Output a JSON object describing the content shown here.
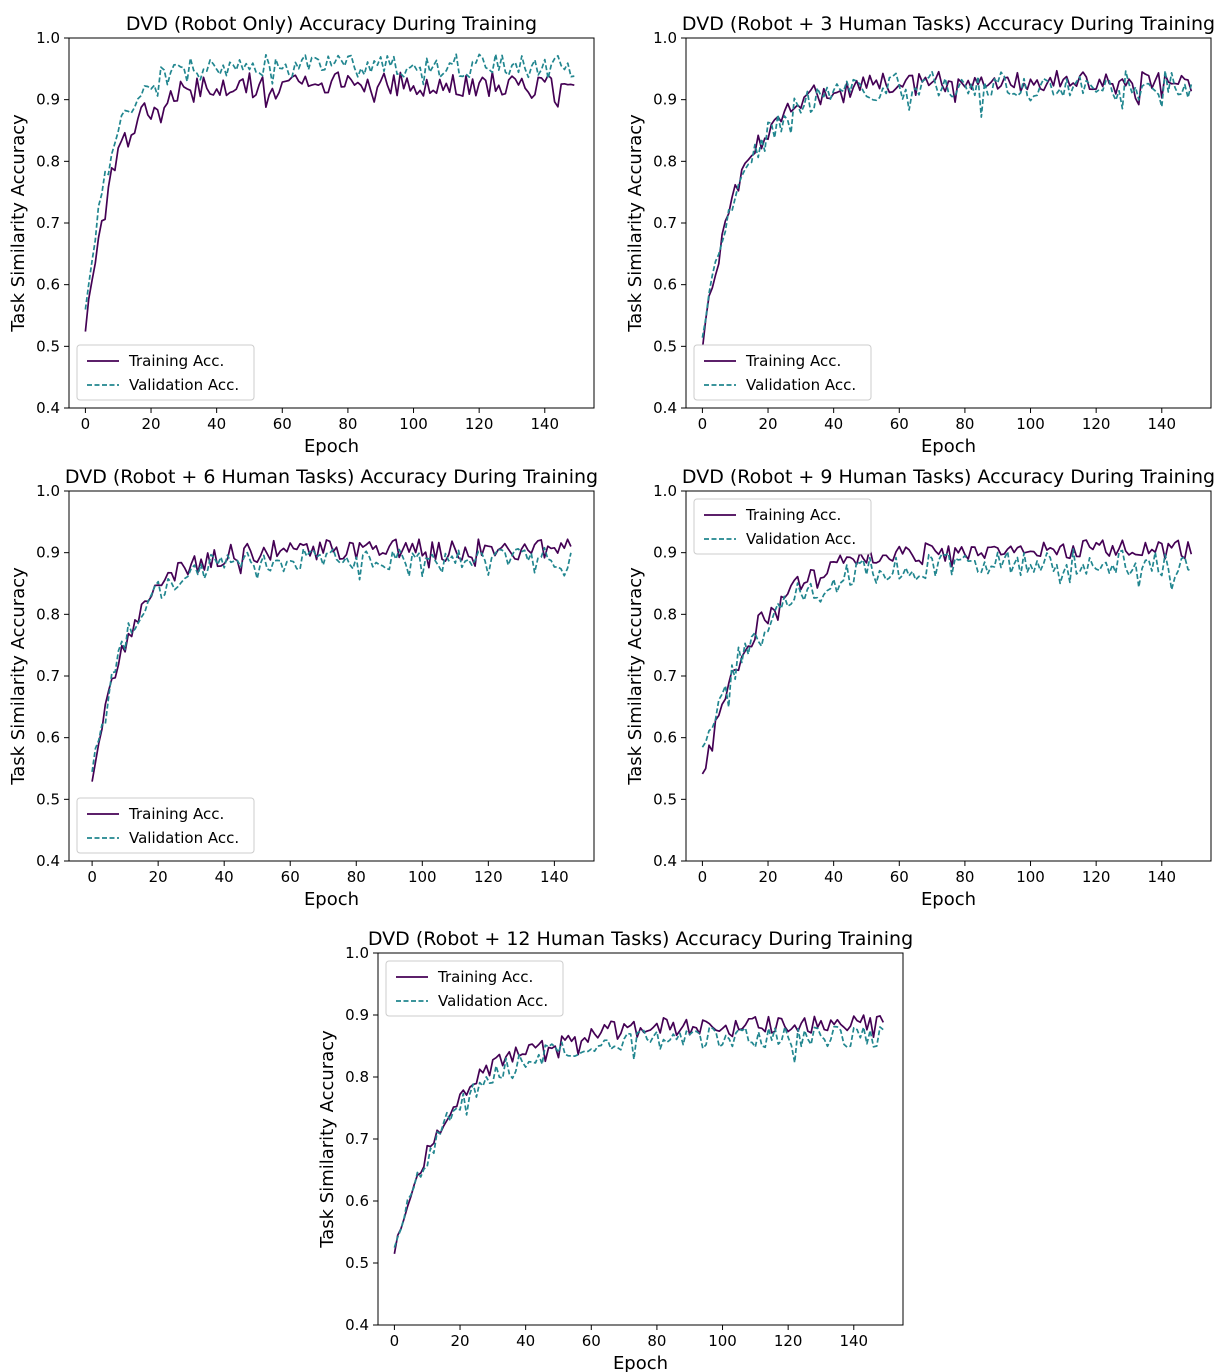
{
  "colors": {
    "training": "#440154",
    "validation": "#21868f"
  },
  "chart_data": [
    {
      "type": "line",
      "title": "DVD (Robot Only) Accuracy During Training",
      "xlabel": "Epoch",
      "ylabel": "Task Similarity Accuracy",
      "xlim": [
        -5,
        155
      ],
      "ylim": [
        0.4,
        1.0
      ],
      "xticks": [
        "0",
        "20",
        "40",
        "60",
        "80",
        "100",
        "120",
        "140"
      ],
      "yticks": [
        "0.4",
        "0.5",
        "0.6",
        "0.7",
        "0.8",
        "0.9",
        "1.0"
      ],
      "legend": "lower-left",
      "epochs": 150,
      "series": [
        {
          "name": "Training Acc.",
          "style": "solid",
          "start": 0.52,
          "plateau": 0.925,
          "rate": 0.12,
          "noise": 0.02
        },
        {
          "name": "Validation Acc.",
          "style": "dashed",
          "start": 0.555,
          "plateau": 0.955,
          "rate": 0.13,
          "noise": 0.02
        }
      ]
    },
    {
      "type": "line",
      "title": "DVD (Robot + 3 Human Tasks) Accuracy During Training",
      "xlabel": "Epoch",
      "ylabel": "Task Similarity Accuracy",
      "xlim": [
        -5,
        155
      ],
      "ylim": [
        0.4,
        1.0
      ],
      "xticks": [
        "0",
        "20",
        "40",
        "60",
        "80",
        "100",
        "120",
        "140"
      ],
      "yticks": [
        "0.4",
        "0.5",
        "0.6",
        "0.7",
        "0.8",
        "0.9",
        "1.0"
      ],
      "legend": "lower-left",
      "epochs": 150,
      "series": [
        {
          "name": "Training Acc.",
          "style": "solid",
          "start": 0.505,
          "plateau": 0.93,
          "rate": 0.085,
          "noise": 0.018
        },
        {
          "name": "Validation Acc.",
          "style": "dashed",
          "start": 0.525,
          "plateau": 0.925,
          "rate": 0.08,
          "noise": 0.022
        }
      ]
    },
    {
      "type": "line",
      "title": "DVD (Robot + 6 Human Tasks) Accuracy During Training",
      "xlabel": "Epoch",
      "ylabel": "Task Similarity Accuracy",
      "xlim": [
        -7,
        152
      ],
      "ylim": [
        0.4,
        1.0
      ],
      "xticks": [
        "0",
        "20",
        "40",
        "60",
        "80",
        "100",
        "120",
        "140"
      ],
      "yticks": [
        "0.4",
        "0.5",
        "0.6",
        "0.7",
        "0.8",
        "0.9",
        "1.0"
      ],
      "legend": "lower-left",
      "epochs": 146,
      "series": [
        {
          "name": "Training Acc.",
          "style": "solid",
          "start": 0.53,
          "plateau": 0.905,
          "rate": 0.09,
          "noise": 0.017
        },
        {
          "name": "Validation Acc.",
          "style": "dashed",
          "start": 0.545,
          "plateau": 0.89,
          "rate": 0.095,
          "noise": 0.018
        }
      ]
    },
    {
      "type": "line",
      "title": "DVD (Robot + 9 Human Tasks) Accuracy During Training",
      "xlabel": "Epoch",
      "ylabel": "Task Similarity Accuracy",
      "xlim": [
        -5,
        155
      ],
      "ylim": [
        0.4,
        1.0
      ],
      "xticks": [
        "0",
        "20",
        "40",
        "60",
        "80",
        "100",
        "120",
        "140"
      ],
      "yticks": [
        "0.4",
        "0.5",
        "0.6",
        "0.7",
        "0.8",
        "0.9",
        "1.0"
      ],
      "legend": "upper-left",
      "epochs": 150,
      "series": [
        {
          "name": "Training Acc.",
          "style": "solid",
          "start": 0.535,
          "plateau": 0.905,
          "rate": 0.065,
          "noise": 0.016
        },
        {
          "name": "Validation Acc.",
          "style": "dashed",
          "start": 0.575,
          "plateau": 0.885,
          "rate": 0.06,
          "noise": 0.022
        }
      ]
    },
    {
      "type": "line",
      "title": "DVD (Robot + 12 Human Tasks) Accuracy During Training",
      "xlabel": "Epoch",
      "ylabel": "Task Similarity Accuracy",
      "xlim": [
        -5,
        155
      ],
      "ylim": [
        0.4,
        1.0
      ],
      "xticks": [
        "0",
        "20",
        "40",
        "60",
        "80",
        "100",
        "120",
        "140"
      ],
      "yticks": [
        "0.4",
        "0.5",
        "0.6",
        "0.7",
        "0.8",
        "0.9",
        "1.0"
      ],
      "legend": "upper-left",
      "epochs": 150,
      "series": [
        {
          "name": "Training Acc.",
          "style": "solid",
          "start": 0.52,
          "plateau": 0.885,
          "rate": 0.055,
          "noise": 0.015
        },
        {
          "name": "Validation Acc.",
          "style": "dashed",
          "start": 0.53,
          "plateau": 0.865,
          "rate": 0.055,
          "noise": 0.017
        }
      ]
    }
  ]
}
